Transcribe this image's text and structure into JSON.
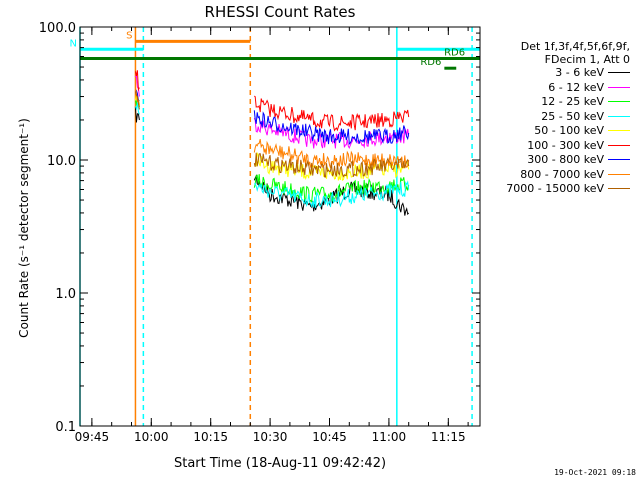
{
  "chart_data": {
    "type": "line",
    "title": "RHESSI Count Rates",
    "xlabel": "Start Time (18-Aug-11 09:42:42)",
    "ylabel": "Count Rate (s⁻¹ detector segment⁻¹)",
    "y_scale": "log",
    "ylim": [
      0.1,
      100.0
    ],
    "xlim": [
      "09:42",
      "11:23"
    ],
    "x_ticks": [
      "09:45",
      "10:00",
      "10:15",
      "10:30",
      "10:45",
      "11:00",
      "11:15"
    ],
    "y_ticks": [
      "0.1",
      "1.0",
      "10.0",
      "100.0"
    ],
    "legend_header": [
      "Det 1f,3f,4f,5f,6f,9f,",
      "FDecim 1, Att 0"
    ],
    "series": [
      {
        "name": "3 - 6 keV",
        "color": "#000000",
        "segments": [
          {
            "x": [
              "09:56",
              "09:57"
            ],
            "y": [
              22,
              20
            ]
          },
          {
            "x": [
              "10:26",
              "10:30",
              "10:40",
              "10:45",
              "10:50",
              "11:00",
              "11:03",
              "11:05"
            ],
            "y": [
              7.5,
              5.5,
              4.5,
              5.0,
              6.0,
              5.5,
              4.5,
              4.0
            ]
          }
        ]
      },
      {
        "name": "6 - 12 keV",
        "color": "#ff00ff",
        "segments": [
          {
            "x": [
              "09:56",
              "09:57"
            ],
            "y": [
              45,
              30
            ]
          },
          {
            "x": [
              "10:26",
              "10:30",
              "10:40",
              "10:45",
              "10:50",
              "11:00",
              "11:03",
              "11:05"
            ],
            "y": [
              19,
              17,
              14,
              14,
              14,
              15,
              15,
              15
            ]
          }
        ]
      },
      {
        "name": "12 - 25 keV",
        "color": "#00ff00",
        "segments": [
          {
            "x": [
              "09:56",
              "09:57"
            ],
            "y": [
              30,
              25
            ]
          },
          {
            "x": [
              "10:26",
              "10:30",
              "10:40",
              "10:45",
              "10:50",
              "11:00",
              "11:03",
              "11:05"
            ],
            "y": [
              7.0,
              6.5,
              5.5,
              5.5,
              6.0,
              6.5,
              6.5,
              6.5
            ]
          }
        ]
      },
      {
        "name": "25 - 50 keV",
        "color": "#00ffff",
        "segments": [
          {
            "x": [
              "09:56",
              "09:57"
            ],
            "y": [
              28,
              22
            ]
          },
          {
            "x": [
              "10:26",
              "10:30",
              "10:40",
              "10:45",
              "10:50",
              "11:00",
              "11:03",
              "11:05"
            ],
            "y": [
              6.5,
              5.8,
              5.0,
              5.0,
              5.3,
              5.8,
              6.0,
              6.0
            ]
          }
        ]
      },
      {
        "name": "50 - 100 keV",
        "color": "#ffff00",
        "segments": [
          {
            "x": [
              "09:56",
              "09:57"
            ],
            "y": [
              32,
              26
            ]
          },
          {
            "x": [
              "10:26",
              "10:30",
              "10:40",
              "10:45",
              "10:50",
              "11:00",
              "11:03",
              "11:05"
            ],
            "y": [
              10,
              9,
              8,
              8,
              8,
              8.5,
              8.5,
              8.5
            ]
          }
        ]
      },
      {
        "name": "100 - 300 keV",
        "color": "#ff0000",
        "segments": [
          {
            "x": [
              "09:56",
              "09:57"
            ],
            "y": [
              48,
              35
            ]
          },
          {
            "x": [
              "10:26",
              "10:30",
              "10:40",
              "10:45",
              "10:50",
              "11:00",
              "11:03",
              "11:05"
            ],
            "y": [
              27,
              24,
              20,
              19,
              19,
              20,
              21,
              21
            ]
          }
        ]
      },
      {
        "name": "300 - 800 keV",
        "color": "#0000ff",
        "segments": [
          {
            "x": [
              "09:56",
              "09:57"
            ],
            "y": [
              38,
              28
            ]
          },
          {
            "x": [
              "10:26",
              "10:30",
              "10:40",
              "10:45",
              "10:50",
              "11:00",
              "11:03",
              "11:05"
            ],
            "y": [
              21,
              19,
              16,
              15,
              15,
              15,
              16,
              16
            ]
          }
        ]
      },
      {
        "name": "800 - 7000 keV",
        "color": "#ff8000",
        "segments": [
          {
            "x": [
              "09:56",
              "09:57"
            ],
            "y": [
              34,
              26
            ]
          },
          {
            "x": [
              "10:26",
              "10:30",
              "10:40",
              "10:45",
              "10:50",
              "11:00",
              "11:03",
              "11:05"
            ],
            "y": [
              13,
              12,
              10,
              10,
              10,
              10,
              10,
              10
            ]
          }
        ]
      },
      {
        "name": "7000 - 15000 keV",
        "color": "#b06000",
        "segments": [
          {
            "x": [
              "09:56",
              "09:57"
            ],
            "y": [
              30,
              24
            ]
          },
          {
            "x": [
              "10:26",
              "10:30",
              "10:40",
              "10:45",
              "10:50",
              "11:00",
              "11:03",
              "11:05"
            ],
            "y": [
              10,
              9.5,
              8.5,
              8.5,
              8.5,
              9,
              9,
              9
            ]
          }
        ]
      }
    ],
    "annotations": [
      {
        "label": "S",
        "color": "#ff8000",
        "y": 78,
        "from": "09:56",
        "to": "10:25"
      },
      {
        "label": "N",
        "color": "#00ffff",
        "y": 68,
        "from": "09:42",
        "to": "09:58"
      },
      {
        "label": "",
        "color": "#00ffff",
        "y": 68,
        "from": "11:02",
        "to": "11:23"
      },
      {
        "label": "",
        "color": "#007700",
        "y": 58,
        "from": "09:42",
        "to": "11:23"
      },
      {
        "label": "RD6",
        "color": "#007700",
        "y": 49,
        "from": "11:14",
        "to": "11:17"
      },
      {
        "label": "RD6",
        "color": "#007700",
        "y": 58,
        "from": "11:20",
        "to": "11:23"
      }
    ],
    "vertical_markers": [
      {
        "x": "09:42",
        "color": "#00ffff",
        "style": "solid"
      },
      {
        "x": "09:56",
        "color": "#ff8000",
        "style": "solid"
      },
      {
        "x": "09:58",
        "color": "#00ffff",
        "style": "dashed"
      },
      {
        "x": "10:25",
        "color": "#ff8000",
        "style": "dashed"
      },
      {
        "x": "11:02",
        "color": "#00ffff",
        "style": "solid"
      },
      {
        "x": "11:21",
        "color": "#00ffff",
        "style": "dashed"
      }
    ],
    "timestamp": "19-Oct-2021 09:18"
  }
}
